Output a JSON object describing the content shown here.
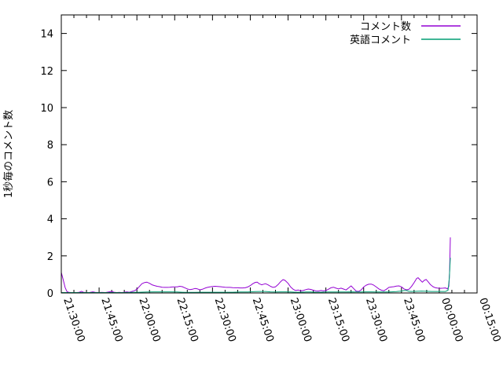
{
  "chart_data": {
    "type": "line",
    "title": "",
    "xlabel": "",
    "ylabel": "1秒毎のコメント数",
    "ylim": [
      0,
      15
    ],
    "yticks": [
      0,
      2,
      4,
      6,
      8,
      10,
      12,
      14
    ],
    "x_axis": {
      "unit": "minutes after 21:30:00",
      "range_minutes": [
        0,
        165
      ],
      "major_tick_interval_minutes": 15,
      "minor_tick_interval_minutes": 5,
      "tick_labels": [
        "21:30:00",
        "21:45:00",
        "22:00:00",
        "22:15:00",
        "22:30:00",
        "22:45:00",
        "23:00:00",
        "23:15:00",
        "23:30:00",
        "23:45:00",
        "00:00:00",
        "00:15:00"
      ],
      "tick_minutes": [
        0,
        15,
        30,
        45,
        60,
        75,
        90,
        105,
        120,
        135,
        150,
        165
      ],
      "label_rotation_deg": 71
    },
    "grid": false,
    "legend_position": "top-right-inside",
    "colors": {
      "background": "#ffffff",
      "axis": "#000000",
      "text": "#000000"
    },
    "series": [
      {
        "name": "コメント数",
        "color": "#9400d3",
        "points": [
          [
            0,
            1.1
          ],
          [
            0.7,
            0.75
          ],
          [
            1.5,
            0.3
          ],
          [
            2.2,
            0.08
          ],
          [
            3,
            0.03
          ],
          [
            4,
            0.02
          ],
          [
            5,
            0.02
          ],
          [
            6,
            0.02
          ],
          [
            7,
            0.03
          ],
          [
            8,
            0.09
          ],
          [
            8.8,
            0.04
          ],
          [
            10,
            0.02
          ],
          [
            11,
            0.02
          ],
          [
            12.5,
            0.06
          ],
          [
            13.5,
            0.03
          ],
          [
            15,
            0.02
          ],
          [
            16,
            0.03
          ],
          [
            17.5,
            0.02
          ],
          [
            19,
            0.06
          ],
          [
            20,
            0.08
          ],
          [
            21,
            0.04
          ],
          [
            22,
            0.02
          ],
          [
            23,
            0.03
          ],
          [
            24,
            0.02
          ],
          [
            25,
            0.04
          ],
          [
            26,
            0.06
          ],
          [
            27,
            0.04
          ],
          [
            28,
            0.08
          ],
          [
            29,
            0.12
          ],
          [
            30,
            0.2
          ],
          [
            31,
            0.35
          ],
          [
            32,
            0.5
          ],
          [
            33,
            0.56
          ],
          [
            34,
            0.58
          ],
          [
            35,
            0.52
          ],
          [
            36,
            0.44
          ],
          [
            37,
            0.4
          ],
          [
            38,
            0.36
          ],
          [
            39,
            0.34
          ],
          [
            40,
            0.31
          ],
          [
            41,
            0.3
          ],
          [
            42,
            0.3
          ],
          [
            43,
            0.31
          ],
          [
            44,
            0.32
          ],
          [
            45,
            0.33
          ],
          [
            46,
            0.33
          ],
          [
            47,
            0.36
          ],
          [
            48,
            0.34
          ],
          [
            49,
            0.28
          ],
          [
            50,
            0.22
          ],
          [
            51,
            0.18
          ],
          [
            52,
            0.2
          ],
          [
            53,
            0.24
          ],
          [
            54,
            0.22
          ],
          [
            55,
            0.17
          ],
          [
            56,
            0.2
          ],
          [
            57,
            0.26
          ],
          [
            58,
            0.3
          ],
          [
            59,
            0.33
          ],
          [
            60,
            0.35
          ],
          [
            61,
            0.36
          ],
          [
            62,
            0.35
          ],
          [
            63,
            0.34
          ],
          [
            64,
            0.32
          ],
          [
            65,
            0.31
          ],
          [
            66,
            0.3
          ],
          [
            67,
            0.3
          ],
          [
            68,
            0.29
          ],
          [
            69,
            0.28
          ],
          [
            70,
            0.28
          ],
          [
            71,
            0.27
          ],
          [
            72,
            0.27
          ],
          [
            73,
            0.28
          ],
          [
            74,
            0.32
          ],
          [
            75,
            0.4
          ],
          [
            76,
            0.5
          ],
          [
            77,
            0.57
          ],
          [
            77.8,
            0.58
          ],
          [
            78.5,
            0.5
          ],
          [
            79.5,
            0.44
          ],
          [
            80.5,
            0.48
          ],
          [
            81,
            0.5
          ],
          [
            82,
            0.44
          ],
          [
            83,
            0.36
          ],
          [
            84,
            0.3
          ],
          [
            85,
            0.33
          ],
          [
            86,
            0.45
          ],
          [
            87,
            0.6
          ],
          [
            88,
            0.72
          ],
          [
            88.8,
            0.68
          ],
          [
            90,
            0.52
          ],
          [
            91,
            0.32
          ],
          [
            92,
            0.2
          ],
          [
            93,
            0.13
          ],
          [
            94,
            0.16
          ],
          [
            95,
            0.11
          ],
          [
            96,
            0.13
          ],
          [
            97,
            0.18
          ],
          [
            98,
            0.21
          ],
          [
            99,
            0.19
          ],
          [
            100,
            0.15
          ],
          [
            101,
            0.11
          ],
          [
            102,
            0.1
          ],
          [
            103,
            0.13
          ],
          [
            104,
            0.11
          ],
          [
            105,
            0.13
          ],
          [
            106,
            0.2
          ],
          [
            107,
            0.28
          ],
          [
            108,
            0.31
          ],
          [
            109,
            0.26
          ],
          [
            110,
            0.22
          ],
          [
            111,
            0.26
          ],
          [
            112,
            0.21
          ],
          [
            113,
            0.16
          ],
          [
            114,
            0.27
          ],
          [
            115,
            0.38
          ],
          [
            116,
            0.24
          ],
          [
            117,
            0.1
          ],
          [
            118,
            0.08
          ],
          [
            119,
            0.16
          ],
          [
            120,
            0.32
          ],
          [
            121,
            0.42
          ],
          [
            122,
            0.47
          ],
          [
            123,
            0.48
          ],
          [
            124,
            0.42
          ],
          [
            125,
            0.32
          ],
          [
            126,
            0.22
          ],
          [
            127,
            0.15
          ],
          [
            128,
            0.12
          ],
          [
            129,
            0.2
          ],
          [
            130,
            0.3
          ],
          [
            131,
            0.32
          ],
          [
            132,
            0.34
          ],
          [
            133,
            0.37
          ],
          [
            134,
            0.38
          ],
          [
            135,
            0.33
          ],
          [
            136,
            0.22
          ],
          [
            137,
            0.17
          ],
          [
            138,
            0.2
          ],
          [
            139,
            0.35
          ],
          [
            140,
            0.55
          ],
          [
            141,
            0.78
          ],
          [
            141.6,
            0.82
          ],
          [
            142.3,
            0.72
          ],
          [
            143.3,
            0.58
          ],
          [
            144,
            0.68
          ],
          [
            144.8,
            0.73
          ],
          [
            145.6,
            0.6
          ],
          [
            146.5,
            0.45
          ],
          [
            147.5,
            0.34
          ],
          [
            148.5,
            0.28
          ],
          [
            149.5,
            0.26
          ],
          [
            150.5,
            0.25
          ],
          [
            151.5,
            0.26
          ],
          [
            152.5,
            0.27
          ],
          [
            153.2,
            0.22
          ],
          [
            153.8,
            0.35
          ],
          [
            154.1,
            1.2
          ],
          [
            154.4,
            3.0
          ]
        ]
      },
      {
        "name": "英語コメント",
        "color": "#009e73",
        "points": [
          [
            0,
            0.02
          ],
          [
            5,
            0.02
          ],
          [
            10,
            0.02
          ],
          [
            15,
            0.02
          ],
          [
            20,
            0.02
          ],
          [
            25,
            0.02
          ],
          [
            28,
            0.03
          ],
          [
            31,
            0.04
          ],
          [
            34,
            0.05
          ],
          [
            37,
            0.06
          ],
          [
            40,
            0.06
          ],
          [
            43,
            0.06
          ],
          [
            46,
            0.05
          ],
          [
            48,
            0.04
          ],
          [
            50,
            0.03
          ],
          [
            53,
            0.03
          ],
          [
            56,
            0.04
          ],
          [
            59,
            0.04
          ],
          [
            62,
            0.04
          ],
          [
            65,
            0.04
          ],
          [
            68,
            0.04
          ],
          [
            71,
            0.05
          ],
          [
            74,
            0.05
          ],
          [
            77,
            0.07
          ],
          [
            79,
            0.08
          ],
          [
            81,
            0.08
          ],
          [
            83,
            0.06
          ],
          [
            85,
            0.05
          ],
          [
            87,
            0.06
          ],
          [
            89,
            0.06
          ],
          [
            91,
            0.05
          ],
          [
            93,
            0.04
          ],
          [
            95,
            0.04
          ],
          [
            97,
            0.05
          ],
          [
            99,
            0.05
          ],
          [
            101,
            0.04
          ],
          [
            103,
            0.04
          ],
          [
            105,
            0.05
          ],
          [
            107,
            0.05
          ],
          [
            109,
            0.05
          ],
          [
            111,
            0.05
          ],
          [
            113,
            0.05
          ],
          [
            115,
            0.06
          ],
          [
            117,
            0.05
          ],
          [
            119,
            0.05
          ],
          [
            121,
            0.06
          ],
          [
            123,
            0.06
          ],
          [
            125,
            0.05
          ],
          [
            127,
            0.05
          ],
          [
            129,
            0.05
          ],
          [
            131,
            0.06
          ],
          [
            133,
            0.07
          ],
          [
            135,
            0.1
          ],
          [
            136,
            0.13
          ],
          [
            137,
            0.13
          ],
          [
            138,
            0.09
          ],
          [
            139,
            0.08
          ],
          [
            141,
            0.09
          ],
          [
            143,
            0.1
          ],
          [
            145,
            0.09
          ],
          [
            147,
            0.08
          ],
          [
            149,
            0.08
          ],
          [
            151,
            0.08
          ],
          [
            152.5,
            0.08
          ],
          [
            153.5,
            0.15
          ],
          [
            154,
            0.8
          ],
          [
            154.4,
            1.9
          ]
        ]
      }
    ]
  }
}
